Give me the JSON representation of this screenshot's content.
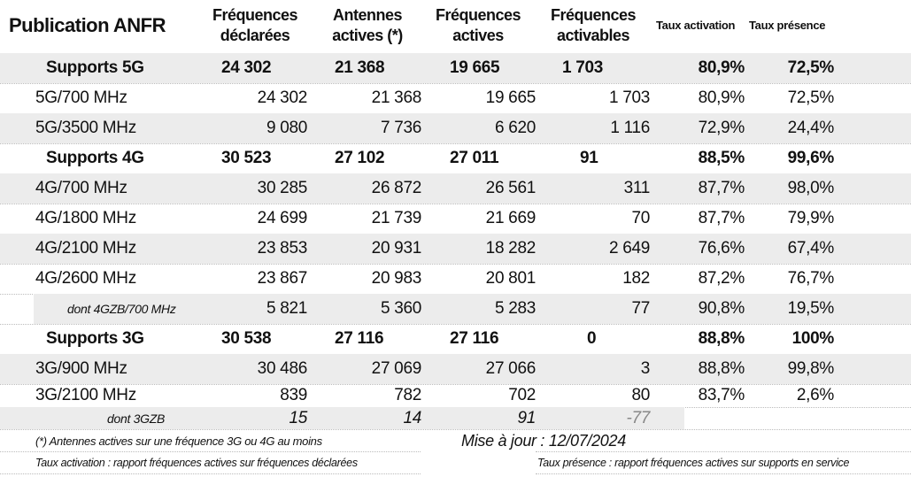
{
  "header": {
    "title": "Publication ANFR",
    "cols": [
      [
        "Fréquences",
        "déclarées"
      ],
      [
        "Antennes",
        "actives (*)"
      ],
      [
        "Fréquences",
        "actives"
      ],
      [
        "Fréquences",
        "activables"
      ]
    ],
    "taux_activation": "Taux activation",
    "taux_presence": "Taux présence"
  },
  "rows": [
    {
      "type": "summary",
      "grey": true,
      "label": "Supports 5G",
      "values": [
        "24 302",
        "21 368",
        "19 665",
        "1 703",
        "80,9%",
        "72,5%"
      ]
    },
    {
      "type": "detail",
      "grey": false,
      "label": "5G/700 MHz",
      "values": [
        "24 302",
        "21 368",
        "19 665",
        "1 703",
        "80,9%",
        "72,5%"
      ]
    },
    {
      "type": "detail",
      "grey": true,
      "label": "5G/3500 MHz",
      "values": [
        "9 080",
        "7 736",
        "6 620",
        "1 116",
        "72,9%",
        "24,4%"
      ]
    },
    {
      "type": "summary",
      "grey": false,
      "label": "Supports 4G",
      "values": [
        "30 523",
        "27 102",
        "27 011",
        "91",
        "88,5%",
        "99,6%"
      ]
    },
    {
      "type": "detail",
      "grey": true,
      "label": "4G/700 MHz",
      "values": [
        "30 285",
        "26 872",
        "26 561",
        "311",
        "87,7%",
        "98,0%"
      ]
    },
    {
      "type": "detail",
      "grey": false,
      "label": "4G/1800 MHz",
      "values": [
        "24 699",
        "21 739",
        "21 669",
        "70",
        "87,7%",
        "79,9%"
      ]
    },
    {
      "type": "detail",
      "grey": true,
      "label": "4G/2100 MHz",
      "values": [
        "23 853",
        "20 931",
        "18 282",
        "2 649",
        "76,6%",
        "67,4%"
      ]
    },
    {
      "type": "detail",
      "grey": false,
      "label": "4G/2600 MHz",
      "values": [
        "23 867",
        "20 983",
        "20 801",
        "182",
        "87,2%",
        "76,7%"
      ]
    },
    {
      "type": "sub",
      "grey": true,
      "label": "dont 4GZB/700 MHz",
      "values": [
        "5 821",
        "5 360",
        "5 283",
        "77",
        "90,8%",
        "19,5%"
      ]
    },
    {
      "type": "summary",
      "grey": false,
      "label": "Supports 3G",
      "values": [
        "30 538",
        "27 116",
        "27 116",
        "0",
        "88,8%",
        "100%"
      ]
    },
    {
      "type": "detail",
      "grey": true,
      "label": "3G/900 MHz",
      "values": [
        "30 486",
        "27 069",
        "27 066",
        "3",
        "88,8%",
        "99,8%"
      ]
    },
    {
      "type": "detail",
      "grey": false,
      "label": "3G/2100 MHz",
      "values": [
        "839",
        "782",
        "702",
        "80",
        "83,7%",
        "2,6%"
      ]
    },
    {
      "type": "sub3",
      "grey": true,
      "label": "dont 3GZB",
      "values": [
        "15",
        "14",
        "91",
        "-77",
        "",
        ""
      ]
    }
  ],
  "footer": {
    "note": "(*) Antennes actives sur une fréquence 3G ou 4G au moins",
    "update": "Mise à jour : 12/07/2024",
    "activation_def": "Taux activation : rapport fréquences actives sur fréquences déclarées",
    "presence_def": "Taux présence : rapport fréquences actives sur supports en service"
  },
  "colors": {
    "grey_row": "#ececec",
    "negative": "#888888"
  }
}
